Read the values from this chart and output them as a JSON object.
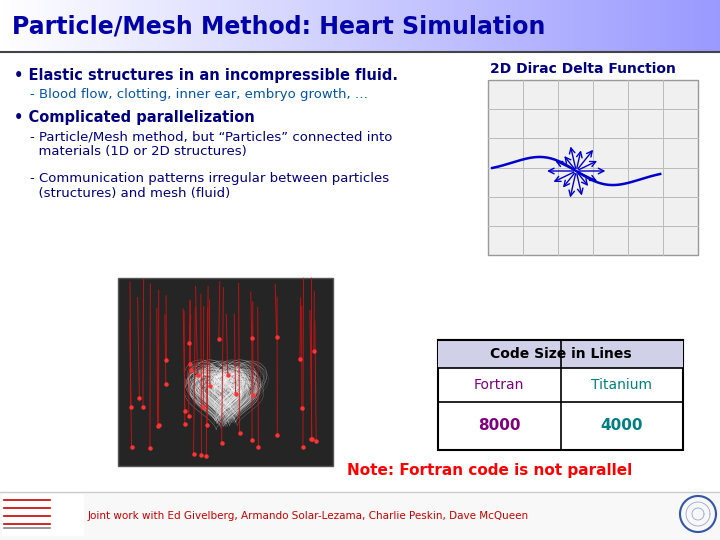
{
  "title": "Particle/Mesh Method: Heart Simulation",
  "title_color": "#0000AA",
  "bg_color": "#FFFFFF",
  "bullet1": "Elastic structures in an incompressible fluid.",
  "sub1": "- Blood flow, clotting, inner ear, embryo growth, …",
  "bullet2": "Complicated parallelization",
  "sub2a": "- Particle/Mesh method, but “Particles” connected into\n  materials (1D or 2D structures)",
  "sub2b": "- Communication patterns irregular between particles\n  (structures) and mesh (fluid)",
  "dirac_title": "2D Dirac Delta Function",
  "table_title": "Code Size in Lines",
  "col1": "Fortran",
  "col2": "Titanium",
  "val1": "8000",
  "val2": "4000",
  "col1_color": "#800080",
  "col2_color": "#008080",
  "note": "Note: Fortran code is not parallel",
  "note_color": "#FF0000",
  "footer": "Joint work with Ed Givelberg, Armando Solar-Lezama, Charlie Peskin, Dave McQueen",
  "footer_color": "#CC0000",
  "text_color": "#000080",
  "sub_color": "#0055AA"
}
